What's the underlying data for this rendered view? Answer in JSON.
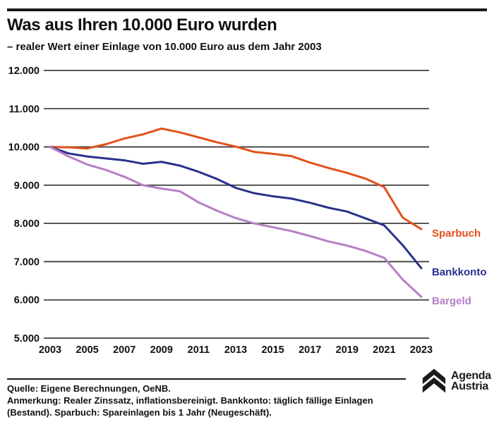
{
  "header": {
    "title": "Was aus Ihren 10.000 Euro wurden",
    "subtitle": "– realer Wert einer Einlage von 10.000 Euro aus dem Jahr 2003"
  },
  "chart_data": {
    "type": "line",
    "x": [
      2003,
      2004,
      2005,
      2006,
      2007,
      2008,
      2009,
      2010,
      2011,
      2012,
      2013,
      2014,
      2015,
      2016,
      2017,
      2018,
      2019,
      2020,
      2021,
      2022,
      2023
    ],
    "series": [
      {
        "name": "Sparbuch",
        "color": "#e2511b",
        "values": [
          10000,
          9990,
          9960,
          10070,
          10220,
          10330,
          10480,
          10380,
          10250,
          10120,
          10010,
          9870,
          9820,
          9760,
          9590,
          9450,
          9320,
          9170,
          8950,
          8150,
          7850
        ]
      },
      {
        "name": "Bankkonto",
        "color": "#28318c",
        "values": [
          10000,
          9830,
          9750,
          9700,
          9650,
          9560,
          9610,
          9510,
          9350,
          9160,
          8930,
          8790,
          8710,
          8650,
          8540,
          8410,
          8310,
          8130,
          7950,
          7430,
          6830
        ]
      },
      {
        "name": "Bargeld",
        "color": "#b57fc4",
        "values": [
          10000,
          9750,
          9540,
          9400,
          9220,
          9000,
          8910,
          8840,
          8550,
          8330,
          8140,
          8000,
          7900,
          7800,
          7670,
          7530,
          7420,
          7280,
          7100,
          6530,
          6080
        ]
      }
    ],
    "ylim": [
      5000,
      12000
    ],
    "ytick_step": 1000,
    "xticks": [
      2003,
      2005,
      2007,
      2009,
      2011,
      2013,
      2015,
      2017,
      2019,
      2021,
      2023
    ],
    "grid": true,
    "legend_position": "right-of-line-end",
    "number_format": "de-thousands-dot"
  },
  "footer": {
    "source": "Quelle: Eigene Berechnungen, OeNB.",
    "note": "Anmerkung: Realer Zinssatz, inflationsbereinigt. Bankkonto: täglich fällige Einlagen (Bestand). Sparbuch: Spareinlagen bis 1 Jahr (Neugeschäft)."
  },
  "logo": {
    "line1": "Agenda",
    "line2": "Austria",
    "icon": "double-chevron-up-icon"
  },
  "colors": {
    "background": "#ffffff",
    "text": "#111111",
    "grid": "#3f3f3f",
    "rule": "#1a1a1a"
  }
}
